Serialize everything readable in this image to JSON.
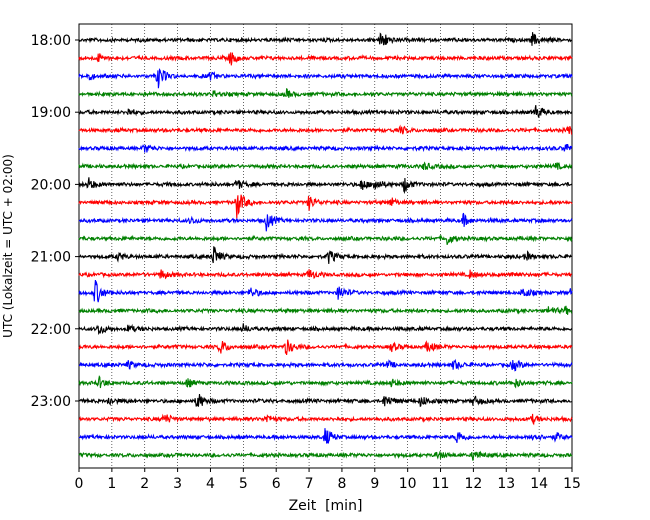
{
  "chart_data": {
    "type": "line",
    "title": "",
    "xlabel": "Zeit  [min]",
    "ylabel": "UTC (Lokalzeit = UTC + 02:00)",
    "xlim": [
      0,
      15
    ],
    "x_ticks": [
      "0",
      "1",
      "2",
      "3",
      "4",
      "5",
      "6",
      "7",
      "8",
      "9",
      "10",
      "11",
      "12",
      "13",
      "14",
      "15"
    ],
    "y_tick_labels": [
      "18:00",
      "19:00",
      "20:00",
      "21:00",
      "22:00",
      "23:00"
    ],
    "grid": "vertical dotted lines at each minute",
    "trace_interval_min": 15,
    "trace_colors": [
      "#000000",
      "#ff0000",
      "#0000ff",
      "#008000"
    ],
    "traces": [
      {
        "start": "18:00",
        "color": "#000000",
        "events": [
          [
            9.2,
            1.6
          ],
          [
            13.8,
            1.0
          ]
        ]
      },
      {
        "start": "18:15",
        "color": "#ff0000",
        "events": [
          [
            4.6,
            1.1
          ],
          [
            0.6,
            0.6
          ]
        ]
      },
      {
        "start": "18:30",
        "color": "#0000ff",
        "events": [
          [
            2.4,
            1.8
          ],
          [
            0.3,
            0.6
          ],
          [
            4.0,
            0.5
          ]
        ]
      },
      {
        "start": "18:45",
        "color": "#008000",
        "events": [
          [
            6.3,
            0.6
          ],
          [
            4.1,
            0.5
          ]
        ]
      },
      {
        "start": "19:00",
        "color": "#000000",
        "events": [
          [
            13.9,
            1.1
          ],
          [
            1.5,
            0.5
          ]
        ]
      },
      {
        "start": "19:15",
        "color": "#ff0000",
        "events": [
          [
            9.8,
            0.6
          ],
          [
            14.9,
            0.7
          ]
        ]
      },
      {
        "start": "19:30",
        "color": "#0000ff",
        "events": [
          [
            14.8,
            0.7
          ],
          [
            2.0,
            0.6
          ]
        ]
      },
      {
        "start": "19:45",
        "color": "#008000",
        "events": [
          [
            10.5,
            0.6
          ],
          [
            14.5,
            0.5
          ]
        ]
      },
      {
        "start": "20:00",
        "color": "#000000",
        "events": [
          [
            0.3,
            0.9
          ],
          [
            8.6,
            0.9
          ],
          [
            9.9,
            1.2
          ],
          [
            4.8,
            0.8
          ],
          [
            9.0,
            1.0
          ]
        ]
      },
      {
        "start": "20:15",
        "color": "#ff0000",
        "events": [
          [
            4.8,
            2.2
          ],
          [
            7.0,
            1.1
          ],
          [
            9.5,
            0.7
          ]
        ]
      },
      {
        "start": "20:30",
        "color": "#0000ff",
        "events": [
          [
            5.7,
            1.4
          ],
          [
            11.7,
            0.9
          ],
          [
            3.4,
            0.5
          ]
        ]
      },
      {
        "start": "20:45",
        "color": "#008000",
        "events": [
          [
            11.2,
            0.9
          ]
        ]
      },
      {
        "start": "21:00",
        "color": "#000000",
        "events": [
          [
            4.1,
            1.6
          ],
          [
            7.6,
            1.0
          ],
          [
            1.2,
            0.6
          ],
          [
            13.6,
            0.7
          ]
        ]
      },
      {
        "start": "21:15",
        "color": "#ff0000",
        "events": [
          [
            2.5,
            0.8
          ],
          [
            7.0,
            0.8
          ],
          [
            11.9,
            0.6
          ],
          [
            13.2,
            0.5
          ]
        ]
      },
      {
        "start": "21:30",
        "color": "#0000ff",
        "events": [
          [
            0.5,
            2.0
          ],
          [
            7.9,
            1.1
          ],
          [
            5.2,
            0.8
          ],
          [
            13.5,
            0.8
          ],
          [
            15.0,
            1.0
          ]
        ]
      },
      {
        "start": "21:45",
        "color": "#008000",
        "events": [
          [
            14.3,
            0.7
          ],
          [
            14.8,
            0.5
          ]
        ]
      },
      {
        "start": "22:00",
        "color": "#000000",
        "events": [
          [
            0.6,
            0.8
          ],
          [
            5.0,
            0.6
          ],
          [
            1.5,
            0.5
          ]
        ]
      },
      {
        "start": "22:15",
        "color": "#ff0000",
        "events": [
          [
            4.3,
            1.1
          ],
          [
            6.3,
            1.3
          ],
          [
            10.6,
            0.9
          ],
          [
            9.5,
            0.6
          ]
        ]
      },
      {
        "start": "22:30",
        "color": "#0000ff",
        "events": [
          [
            11.4,
            0.8
          ],
          [
            13.2,
            0.9
          ],
          [
            1.5,
            0.6
          ],
          [
            9.4,
            0.5
          ]
        ]
      },
      {
        "start": "22:45",
        "color": "#008000",
        "events": [
          [
            0.6,
            0.8
          ],
          [
            3.3,
            0.6
          ],
          [
            9.5,
            0.6
          ],
          [
            13.3,
            0.6
          ]
        ]
      },
      {
        "start": "23:00",
        "color": "#000000",
        "events": [
          [
            3.6,
            1.4
          ],
          [
            9.3,
            1.0
          ],
          [
            10.4,
            0.9
          ],
          [
            12.0,
            0.8
          ],
          [
            0.9,
            0.6
          ]
        ]
      },
      {
        "start": "23:15",
        "color": "#ff0000",
        "events": [
          [
            2.6,
            0.8
          ],
          [
            5.7,
            0.7
          ],
          [
            13.8,
            0.6
          ]
        ]
      },
      {
        "start": "23:30",
        "color": "#0000ff",
        "events": [
          [
            7.5,
            1.4
          ],
          [
            11.5,
            1.0
          ],
          [
            13.8,
            0.6
          ],
          [
            14.5,
            0.6
          ]
        ]
      },
      {
        "start": "23:45",
        "color": "#008000",
        "events": [
          [
            12.0,
            0.9
          ],
          [
            10.9,
            0.6
          ]
        ]
      }
    ]
  }
}
